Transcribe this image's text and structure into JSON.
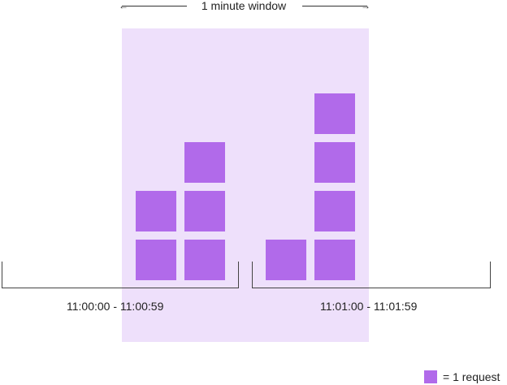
{
  "header": {
    "label": "1 minute window"
  },
  "colors": {
    "request": "#b16aea",
    "window": "#eee0fb"
  },
  "ranges": [
    {
      "label": "11:00:00 - 11:00:59"
    },
    {
      "label": "11:01:00 - 11:01:59"
    }
  ],
  "legend": {
    "label": "= 1 request"
  }
}
